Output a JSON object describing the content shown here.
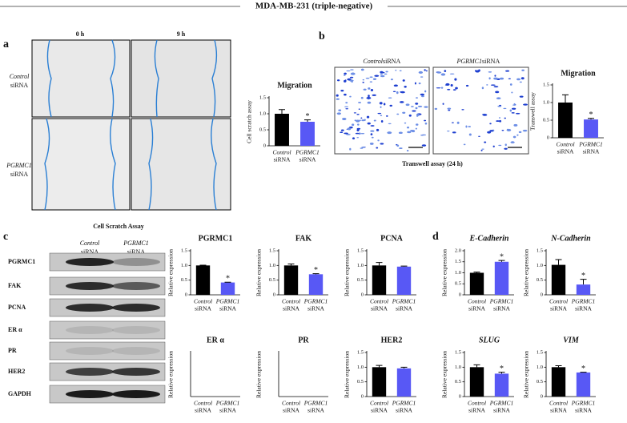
{
  "title": "MDA-MB-231 (triple-negative)",
  "panels": [
    "a",
    "b",
    "c",
    "d"
  ],
  "scratch": {
    "columns": [
      "0 h",
      "9 h"
    ],
    "rows": [
      [
        "Control",
        "siRNA"
      ],
      [
        "PGRMC1",
        "siRNA"
      ]
    ],
    "caption": "Cell Scratch Assay"
  },
  "transwell": {
    "labels": [
      [
        "Control",
        "siRNA"
      ],
      [
        "PGRMC1",
        "siRNA"
      ]
    ],
    "caption": "Transwell assay (24 h)"
  },
  "western": {
    "columns": [
      [
        "Control",
        "siRNA"
      ],
      [
        "PGRMC1",
        "siRNA"
      ]
    ],
    "rows": [
      "PGRMC1",
      "FAK",
      "PCNA",
      "ER α",
      "PR",
      "HER2",
      "GAPDH"
    ]
  },
  "chart_data": [
    {
      "type": "bar",
      "title": "Migration",
      "y_label": "Cell scratch assay",
      "categories": [
        [
          "Control",
          "siRNA"
        ],
        [
          "PGRMC1",
          "siRNA"
        ]
      ],
      "values": [
        1.0,
        0.75
      ],
      "errors": [
        0.13,
        0.06
      ],
      "significance": [
        null,
        "*"
      ],
      "colors": [
        "#000000",
        "#5858f5"
      ],
      "ylim": [
        0,
        1.5
      ],
      "yticks": [
        0,
        0.5,
        {
          "value": 1,
          "label": "1.0"
        },
        1.5
      ]
    },
    {
      "type": "bar",
      "title": "Migration",
      "y_label": "Transwell assay",
      "categories": [
        [
          "Control",
          "siRNA"
        ],
        [
          "PGRMC1",
          "siRNA"
        ]
      ],
      "values": [
        1.0,
        0.52
      ],
      "errors": [
        0.22,
        0.03
      ],
      "significance": [
        null,
        "*"
      ],
      "colors": [
        "#000000",
        "#5858f5"
      ],
      "ylim": [
        0,
        1.5
      ],
      "yticks": [
        0,
        0.5,
        {
          "value": 1,
          "label": "1.0"
        },
        1.5
      ]
    },
    {
      "type": "bar",
      "title": "PGRMC1",
      "y_label": "Relative expression",
      "categories": [
        [
          "Control",
          "siRNA"
        ],
        [
          "PGRMC1",
          "siRNA"
        ]
      ],
      "values": [
        1.0,
        0.42
      ],
      "errors": [
        0.01,
        0.01
      ],
      "significance": [
        null,
        "*"
      ],
      "colors": [
        "#000000",
        "#5858f5"
      ],
      "ylim": [
        0,
        1.5
      ],
      "yticks": [
        0,
        0.5,
        {
          "value": 1,
          "label": "1.0"
        },
        1.5
      ]
    },
    {
      "type": "bar",
      "title": "FAK",
      "y_label": "Relative expression",
      "categories": [
        [
          "Control",
          "siRNA"
        ],
        [
          "PGRMC1",
          "siRNA"
        ]
      ],
      "values": [
        1.0,
        0.7
      ],
      "errors": [
        0.05,
        0.02
      ],
      "significance": [
        null,
        "*"
      ],
      "colors": [
        "#000000",
        "#5858f5"
      ],
      "ylim": [
        0,
        1.5
      ],
      "yticks": [
        0,
        0.5,
        {
          "value": 1,
          "label": "1.0"
        },
        1.5
      ]
    },
    {
      "type": "bar",
      "title": "PCNA",
      "y_label": "Relative expression",
      "categories": [
        [
          "Control",
          "siRNA"
        ],
        [
          "PGRMC1",
          "siRNA"
        ]
      ],
      "values": [
        1.0,
        0.96
      ],
      "errors": [
        0.1,
        0.02
      ],
      "significance": [
        null,
        null
      ],
      "colors": [
        "#000000",
        "#5858f5"
      ],
      "ylim": [
        0,
        1.5
      ],
      "yticks": [
        0,
        0.5,
        {
          "value": 1,
          "label": "1.0"
        },
        1.5
      ]
    },
    {
      "type": "bar",
      "title": "ER α",
      "y_label": "Relative expression",
      "categories": [
        [
          "Control",
          "siRNA"
        ],
        [
          "PGRMC1",
          "siRNA"
        ]
      ],
      "values": [
        null,
        null
      ],
      "errors": [
        null,
        null
      ],
      "significance": [
        null,
        null
      ],
      "colors": [
        "#000000",
        "#5858f5"
      ],
      "ylim": [
        0,
        1.5
      ],
      "yticks": []
    },
    {
      "type": "bar",
      "title": "PR",
      "y_label": "Relative expression",
      "categories": [
        [
          "Control",
          "siRNA"
        ],
        [
          "PGRMC1",
          "siRNA"
        ]
      ],
      "values": [
        null,
        null
      ],
      "errors": [
        null,
        null
      ],
      "significance": [
        null,
        null
      ],
      "colors": [
        "#000000",
        "#5858f5"
      ],
      "ylim": [
        0,
        1.5
      ],
      "yticks": []
    },
    {
      "type": "bar",
      "title": "HER2",
      "y_label": "Relative expression",
      "categories": [
        [
          "Control",
          "siRNA"
        ],
        [
          "PGRMC1",
          "siRNA"
        ]
      ],
      "values": [
        1.0,
        0.96
      ],
      "errors": [
        0.06,
        0.04
      ],
      "significance": [
        null,
        null
      ],
      "colors": [
        "#000000",
        "#5858f5"
      ],
      "ylim": [
        0,
        1.5
      ],
      "yticks": [
        0,
        0.5,
        {
          "value": 1,
          "label": "1.0"
        },
        1.5
      ]
    },
    {
      "type": "bar",
      "title": "E-Cadherin",
      "y_label": "Relative expression",
      "categories": [
        [
          "Control",
          "siRNA"
        ],
        [
          "PGRMC1",
          "siRNA"
        ]
      ],
      "values": [
        1.0,
        1.5
      ],
      "errors": [
        0.03,
        0.06
      ],
      "significance": [
        null,
        "*"
      ],
      "colors": [
        "#000000",
        "#5858f5"
      ],
      "ylim": [
        0,
        2
      ],
      "yticks": [
        0,
        0.5,
        {
          "value": 1,
          "label": "1.0"
        },
        1.5,
        {
          "value": 2,
          "label": "2.0"
        }
      ]
    },
    {
      "type": "bar",
      "title": "N-Cadherin",
      "y_label": "Relative expression",
      "categories": [
        [
          "Control",
          "siRNA"
        ],
        [
          "PGRMC1",
          "siRNA"
        ]
      ],
      "values": [
        1.02,
        0.35
      ],
      "errors": [
        0.18,
        0.18
      ],
      "significance": [
        null,
        "*"
      ],
      "colors": [
        "#000000",
        "#5858f5"
      ],
      "ylim": [
        0,
        1.5
      ],
      "yticks": [
        0,
        0.5,
        {
          "value": 1,
          "label": "1.0"
        },
        1.5
      ]
    },
    {
      "type": "bar",
      "title": "SLUG",
      "y_label": "Relative expression",
      "categories": [
        [
          "Control",
          "siRNA"
        ],
        [
          "PGRMC1",
          "siRNA"
        ]
      ],
      "values": [
        1.0,
        0.78
      ],
      "errors": [
        0.08,
        0.05
      ],
      "significance": [
        null,
        "*"
      ],
      "colors": [
        "#000000",
        "#5858f5"
      ],
      "ylim": [
        0,
        1.5
      ],
      "yticks": [
        0,
        0.5,
        {
          "value": 1,
          "label": "1.0"
        },
        1.5
      ]
    },
    {
      "type": "bar",
      "title": "VIM",
      "y_label": "Relative expression",
      "categories": [
        [
          "Control",
          "siRNA"
        ],
        [
          "PGRMC1",
          "siRNA"
        ]
      ],
      "values": [
        1.0,
        0.82
      ],
      "errors": [
        0.05,
        0.01
      ],
      "significance": [
        null,
        "*"
      ],
      "colors": [
        "#000000",
        "#5858f5"
      ],
      "ylim": [
        0,
        1.5
      ],
      "yticks": [
        0,
        0.5,
        {
          "value": 1,
          "label": "1.0"
        },
        1.5
      ]
    }
  ]
}
